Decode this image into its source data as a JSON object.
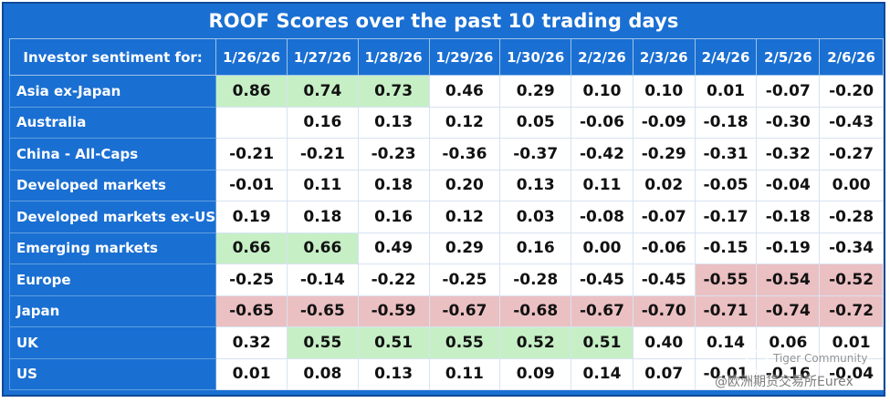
{
  "title": "ROOF Scores over the past 10 trading days",
  "header_label": "Investor sentiment for:",
  "dates": [
    "1/26/26",
    "1/27/26",
    "1/28/26",
    "1/29/26",
    "1/30/26",
    "2/2/26",
    "2/3/26",
    "2/4/26",
    "2/5/26",
    "2/6/26"
  ],
  "rows": [
    {
      "name": "Asia ex-Japan",
      "values": [
        "0.86",
        "0.74",
        "0.73",
        "0.46",
        "0.29",
        "0.10",
        "0.10",
        "0.01",
        "-0.07",
        "-0.20"
      ],
      "highlight": [
        "pos",
        "pos",
        "pos",
        "",
        "",
        "",
        "",
        "",
        "",
        ""
      ]
    },
    {
      "name": "Australia",
      "values": [
        "",
        "0.16",
        "0.13",
        "0.12",
        "0.05",
        "-0.06",
        "-0.09",
        "-0.18",
        "-0.30",
        "-0.43"
      ],
      "highlight": [
        "",
        "",
        "",
        "",
        "",
        "",
        "",
        "",
        "",
        ""
      ]
    },
    {
      "name": "China - All-Caps",
      "values": [
        "-0.21",
        "-0.21",
        "-0.23",
        "-0.36",
        "-0.37",
        "-0.42",
        "-0.29",
        "-0.31",
        "-0.32",
        "-0.27"
      ],
      "highlight": [
        "",
        "",
        "",
        "",
        "",
        "",
        "",
        "",
        "",
        ""
      ]
    },
    {
      "name": "Developed markets",
      "values": [
        "-0.01",
        "0.11",
        "0.18",
        "0.20",
        "0.13",
        "0.11",
        "0.02",
        "-0.05",
        "-0.04",
        "0.00"
      ],
      "highlight": [
        "",
        "",
        "",
        "",
        "",
        "",
        "",
        "",
        "",
        ""
      ]
    },
    {
      "name": "Developed markets ex-US",
      "values": [
        "0.19",
        "0.18",
        "0.16",
        "0.12",
        "0.03",
        "-0.08",
        "-0.07",
        "-0.17",
        "-0.18",
        "-0.28"
      ],
      "highlight": [
        "",
        "",
        "",
        "",
        "",
        "",
        "",
        "",
        "",
        ""
      ]
    },
    {
      "name": "Emerging markets",
      "values": [
        "0.66",
        "0.66",
        "0.49",
        "0.29",
        "0.16",
        "0.00",
        "-0.06",
        "-0.15",
        "-0.19",
        "-0.34"
      ],
      "highlight": [
        "pos",
        "pos",
        "",
        "",
        "",
        "",
        "",
        "",
        "",
        ""
      ]
    },
    {
      "name": "Europe",
      "values": [
        "-0.25",
        "-0.14",
        "-0.22",
        "-0.25",
        "-0.28",
        "-0.45",
        "-0.45",
        "-0.55",
        "-0.54",
        "-0.52"
      ],
      "highlight": [
        "",
        "",
        "",
        "",
        "",
        "",
        "",
        "neg",
        "neg",
        "neg"
      ]
    },
    {
      "name": "Japan",
      "values": [
        "-0.65",
        "-0.65",
        "-0.59",
        "-0.67",
        "-0.68",
        "-0.67",
        "-0.70",
        "-0.71",
        "-0.74",
        "-0.72"
      ],
      "highlight": [
        "neg",
        "neg",
        "neg",
        "neg",
        "neg",
        "neg",
        "neg",
        "neg",
        "neg",
        "neg"
      ]
    },
    {
      "name": "UK",
      "values": [
        "0.32",
        "0.55",
        "0.51",
        "0.55",
        "0.52",
        "0.51",
        "0.40",
        "0.14",
        "0.06",
        "0.01"
      ],
      "highlight": [
        "",
        "pos",
        "pos",
        "pos",
        "pos",
        "pos",
        "",
        "",
        "",
        ""
      ]
    },
    {
      "name": "US",
      "values": [
        "0.01",
        "0.08",
        "0.13",
        "0.11",
        "0.09",
        "0.14",
        "0.07",
        "-0.01",
        "-0.16",
        "-0.04"
      ],
      "highlight": [
        "",
        "",
        "",
        "",
        "",
        "",
        "",
        "",
        "",
        ""
      ]
    }
  ],
  "colors": {
    "header_blue": "#1a6fd2",
    "positive_fill": "#c6efc6",
    "negative_fill": "#ebc0c2"
  },
  "watermark": {
    "name": "Tiger Community",
    "sub": "@欧洲期货交易所Eurex"
  }
}
